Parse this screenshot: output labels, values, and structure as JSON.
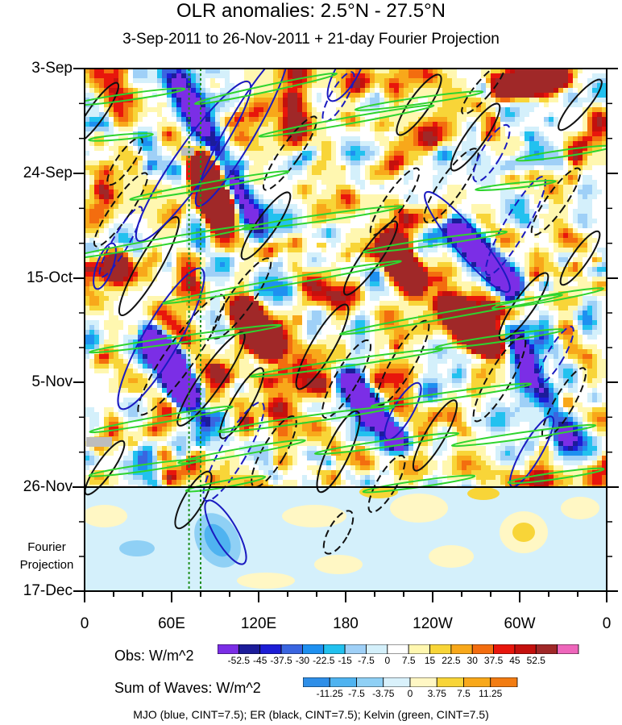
{
  "chart_data": {
    "type": "heatmap",
    "title": "OLR anomalies: 2.5°N - 27.5°N",
    "subtitle": "3-Sep-2011 to 26-Nov-2011 + 21-day Fourier Projection",
    "y_ticks": [
      "3-Sep",
      "24-Sep",
      "15-Oct",
      "5-Nov",
      "26-Nov",
      "17-Dec"
    ],
    "x_ticks": [
      "0",
      "60E",
      "120E",
      "180",
      "120W",
      "60W",
      "0"
    ],
    "projection_label": [
      "Fourier",
      "Projection"
    ],
    "obs_colorbar": {
      "label": "Obs: W/m^2",
      "ticks": [
        "-52.5",
        "-45",
        "-37.5",
        "-30",
        "-22.5",
        "-15",
        "-7.5",
        "0",
        "7.5",
        "15",
        "22.5",
        "30",
        "37.5",
        "45",
        "52.5"
      ],
      "colors": [
        "#7b2ee6",
        "#1c1c9a",
        "#1d1ed6",
        "#3a65e0",
        "#1e90f0",
        "#22c1ef",
        "#9fd0f7",
        "#d4f0fb",
        "#ffffff",
        "#fff7b0",
        "#f8d538",
        "#f8a81a",
        "#f36d0f",
        "#e8160c",
        "#c4100d",
        "#a02828",
        "#ee66bb"
      ]
    },
    "waves_colorbar": {
      "label": "Sum of Waves: W/m^2",
      "ticks": [
        "-11.25",
        "-7.5",
        "-3.75",
        "0",
        "3.75",
        "7.5",
        "11.25"
      ],
      "colors": [
        "#2f8fe8",
        "#4fb3f0",
        "#8fd0f5",
        "#d9f1fb",
        "#fff7c4",
        "#f8d538",
        "#f8a81a",
        "#f27c12"
      ]
    },
    "caption": "MJO (blue, CINT=7.5); ER (black, CINT=7.5); Kelvin (green, CINT=7.5)"
  }
}
